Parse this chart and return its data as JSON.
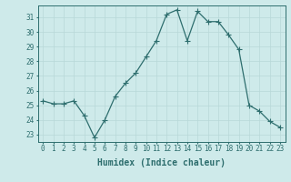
{
  "x": [
    0,
    1,
    2,
    3,
    4,
    5,
    6,
    7,
    8,
    9,
    10,
    11,
    12,
    13,
    14,
    15,
    16,
    17,
    18,
    19,
    20,
    21,
    22,
    23
  ],
  "y": [
    25.3,
    25.1,
    25.1,
    25.3,
    24.3,
    22.8,
    24.0,
    25.6,
    26.5,
    27.2,
    28.3,
    29.4,
    31.2,
    31.5,
    29.4,
    31.4,
    30.7,
    30.7,
    29.8,
    28.8,
    25.0,
    24.6,
    23.9,
    23.5
  ],
  "line_color": "#2e6e6e",
  "marker": "+",
  "marker_size": 4,
  "marker_lw": 0.8,
  "linewidth": 0.9,
  "xlabel": "Humidex (Indice chaleur)",
  "xlabel_fontsize": 7,
  "xlim": [
    -0.5,
    23.5
  ],
  "ylim": [
    22.5,
    31.8
  ],
  "yticks": [
    23,
    24,
    25,
    26,
    27,
    28,
    29,
    30,
    31
  ],
  "xticks": [
    0,
    1,
    2,
    3,
    4,
    5,
    6,
    7,
    8,
    9,
    10,
    11,
    12,
    13,
    14,
    15,
    16,
    17,
    18,
    19,
    20,
    21,
    22,
    23
  ],
  "grid_color": "#b8d8d8",
  "background_color": "#ceeaea",
  "tick_fontsize": 5.5,
  "figsize": [
    3.2,
    2.0
  ],
  "dpi": 100
}
